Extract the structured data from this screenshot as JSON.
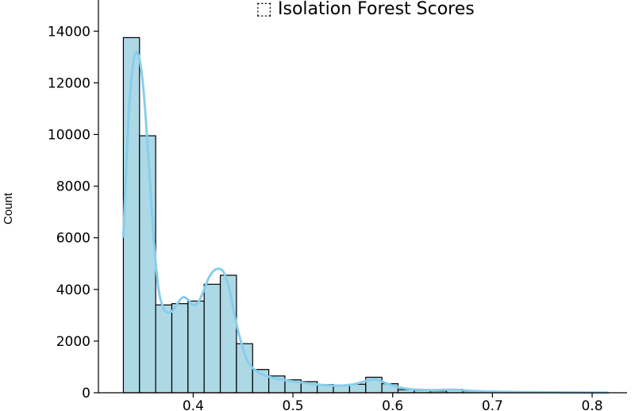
{
  "chart_data": {
    "type": "bar",
    "title": "⬚ Isolation Forest Scores",
    "xlabel": "",
    "ylabel": "Count",
    "xlim": [
      0.305,
      0.835
    ],
    "ylim": [
      0,
      14500
    ],
    "xticks": [
      "0.4",
      "0.5",
      "0.6",
      "0.7",
      "0.8"
    ],
    "yticks": [
      "0",
      "2000",
      "4000",
      "6000",
      "8000",
      "10000",
      "12000",
      "14000"
    ],
    "grid": false,
    "legend": "none",
    "bar_color": "#add8e6",
    "kde_color": "#87ceeb",
    "bins": [
      {
        "x0": 0.33,
        "x1": 0.3462,
        "count": 13750
      },
      {
        "x0": 0.3462,
        "x1": 0.3624,
        "count": 9950
      },
      {
        "x0": 0.3624,
        "x1": 0.3786,
        "count": 3400
      },
      {
        "x0": 0.3786,
        "x1": 0.3948,
        "count": 3450
      },
      {
        "x0": 0.3948,
        "x1": 0.411,
        "count": 3550
      },
      {
        "x0": 0.411,
        "x1": 0.4272,
        "count": 4200
      },
      {
        "x0": 0.4272,
        "x1": 0.4434,
        "count": 4550
      },
      {
        "x0": 0.4434,
        "x1": 0.4596,
        "count": 1900
      },
      {
        "x0": 0.4596,
        "x1": 0.4758,
        "count": 900
      },
      {
        "x0": 0.4758,
        "x1": 0.492,
        "count": 650
      },
      {
        "x0": 0.492,
        "x1": 0.5082,
        "count": 500
      },
      {
        "x0": 0.5082,
        "x1": 0.5244,
        "count": 430
      },
      {
        "x0": 0.5244,
        "x1": 0.5406,
        "count": 320
      },
      {
        "x0": 0.5406,
        "x1": 0.5568,
        "count": 300
      },
      {
        "x0": 0.5568,
        "x1": 0.573,
        "count": 330
      },
      {
        "x0": 0.573,
        "x1": 0.5892,
        "count": 600
      },
      {
        "x0": 0.5892,
        "x1": 0.6054,
        "count": 350
      },
      {
        "x0": 0.6054,
        "x1": 0.6216,
        "count": 120
      },
      {
        "x0": 0.6216,
        "x1": 0.6378,
        "count": 90
      },
      {
        "x0": 0.6378,
        "x1": 0.654,
        "count": 70
      },
      {
        "x0": 0.654,
        "x1": 0.6702,
        "count": 130
      },
      {
        "x0": 0.6702,
        "x1": 0.6864,
        "count": 60
      },
      {
        "x0": 0.6864,
        "x1": 0.7026,
        "count": 35
      },
      {
        "x0": 0.7026,
        "x1": 0.7188,
        "count": 25
      },
      {
        "x0": 0.7188,
        "x1": 0.735,
        "count": 20
      },
      {
        "x0": 0.735,
        "x1": 0.7512,
        "count": 18
      },
      {
        "x0": 0.7512,
        "x1": 0.7674,
        "count": 15
      },
      {
        "x0": 0.7674,
        "x1": 0.7836,
        "count": 12
      },
      {
        "x0": 0.7836,
        "x1": 0.7998,
        "count": 10
      },
      {
        "x0": 0.7998,
        "x1": 0.816,
        "count": 8
      }
    ],
    "kde": {
      "x": [
        0.33,
        0.335,
        0.34,
        0.345,
        0.35,
        0.355,
        0.36,
        0.365,
        0.37,
        0.375,
        0.38,
        0.385,
        0.39,
        0.395,
        0.4,
        0.405,
        0.41,
        0.415,
        0.42,
        0.425,
        0.43,
        0.435,
        0.44,
        0.445,
        0.45,
        0.455,
        0.46,
        0.47,
        0.48,
        0.49,
        0.5,
        0.51,
        0.52,
        0.53,
        0.54,
        0.55,
        0.56,
        0.57,
        0.575,
        0.58,
        0.585,
        0.59,
        0.6,
        0.61,
        0.62,
        0.63,
        0.64,
        0.65,
        0.66,
        0.67,
        0.68,
        0.7,
        0.72,
        0.75,
        0.78,
        0.816
      ],
      "y": [
        6000,
        10500,
        12800,
        13100,
        11800,
        9200,
        6200,
        4100,
        3300,
        3100,
        3200,
        3500,
        3700,
        3600,
        3400,
        3500,
        3900,
        4400,
        4700,
        4800,
        4700,
        4200,
        3300,
        2400,
        1700,
        1200,
        950,
        700,
        580,
        500,
        440,
        390,
        340,
        300,
        280,
        280,
        320,
        420,
        480,
        520,
        500,
        420,
        280,
        180,
        130,
        110,
        100,
        110,
        120,
        100,
        70,
        45,
        30,
        18,
        10,
        5
      ]
    }
  }
}
